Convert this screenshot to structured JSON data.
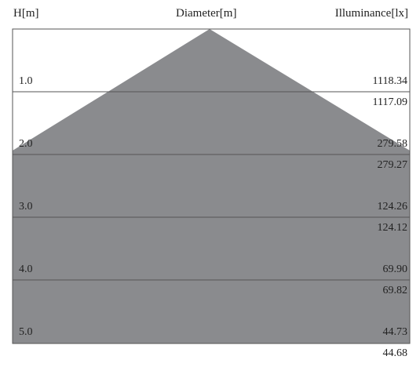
{
  "headers": {
    "height": "H[m]",
    "diameter": "Diameter[m]",
    "illuminance": "Illuminance[lx]"
  },
  "colors": {
    "cone_fill": "#8a8b8e",
    "grid_line": "#555555"
  },
  "rows": [
    {
      "height": "1.0",
      "illuminance_top": "1118.34",
      "illuminance_bottom": "1117.09"
    },
    {
      "height": "2.0",
      "illuminance_top": "279.58",
      "illuminance_bottom": "279.27"
    },
    {
      "height": "3.0",
      "illuminance_top": "124.26",
      "illuminance_bottom": "124.12"
    },
    {
      "height": "4.0",
      "illuminance_top": "69.90",
      "illuminance_bottom": "69.82"
    },
    {
      "height": "5.0",
      "illuminance_top": "44.73",
      "illuminance_bottom": "44.68"
    }
  ]
}
